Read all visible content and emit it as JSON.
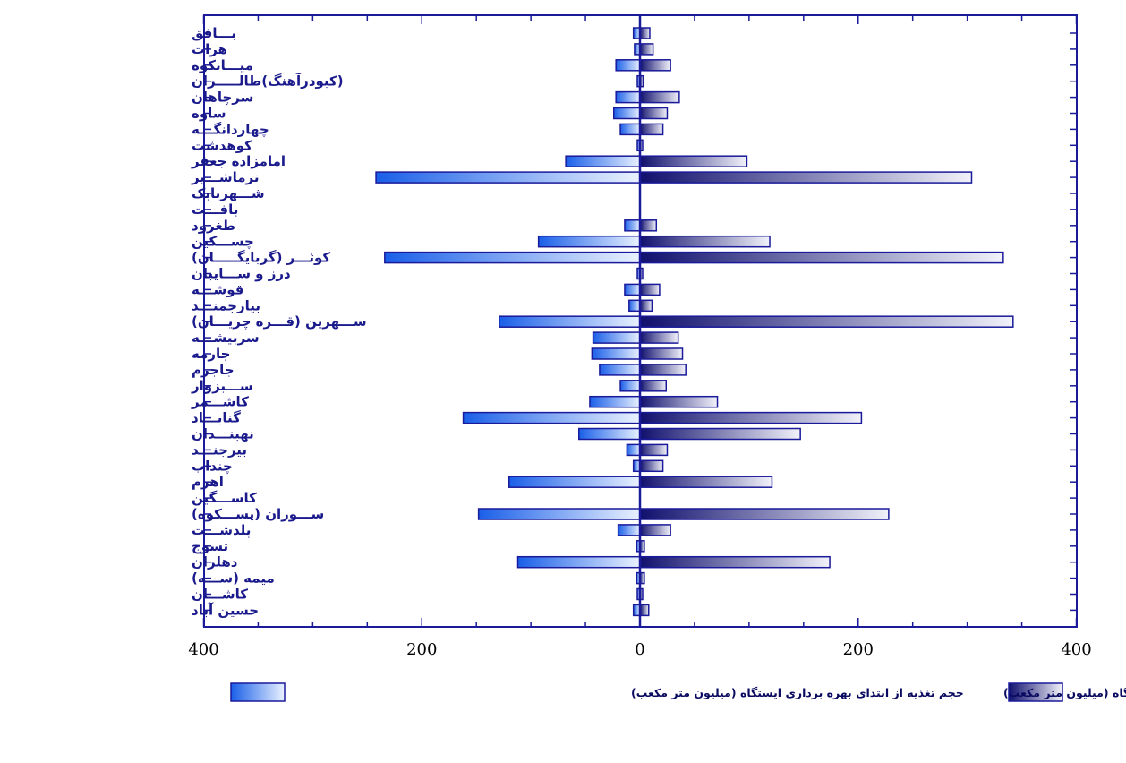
{
  "chart_data": {
    "type": "bar",
    "orientation": "horizontal-butterfly",
    "categories": [
      "بـــافق",
      "هرات",
      "میـــانکوه",
      "(کبودرآهنگ)طالـــــران",
      "سرچاهان",
      "ساوه",
      "چهاردانگـــه",
      "کوهدشت",
      "امامزاده جعفر",
      "نرماشـــیر",
      "شـــهربابک",
      "بافـــت",
      "طغرود",
      "چســـکین",
      "کوثـــر (گربایگـــــان)",
      "درز و ســـایبان",
      "قوشـــه",
      "بیارجمنـــد",
      "ســـهرین (قـــره چریـــان)",
      "سربیشـــه",
      "جارمه",
      "جاجرم",
      "ســـبزوار",
      "کاشـــمر",
      "گنابـــاد",
      "نهبنـــدان",
      "بیرجنـــد",
      "چنداب",
      "اهرم",
      "کاســـگین",
      "ســـوران (پســـکوه)",
      "پلدشـــت",
      "تسوج",
      "دهلران",
      "میمه (ســـه)",
      "کاشـــان",
      "حسین آباد"
    ],
    "series": [
      {
        "name": "حجم تغذیه از ابتدای بهره برداری ایستگاه (میلیون متر مکعب)",
        "side": "left",
        "values": [
          6,
          5,
          22,
          1,
          22,
          24,
          18,
          2,
          68,
          242,
          0,
          0,
          14,
          93,
          234,
          1,
          14,
          10,
          129,
          43,
          44,
          37,
          18,
          46,
          162,
          56,
          12,
          6,
          120,
          0,
          148,
          20,
          3,
          112,
          3,
          1,
          6
        ]
      },
      {
        "name": "حجم سیل گیری از ابتدای بهره برداری ایستگاه (میلیون متر مکعب)",
        "side": "right",
        "values": [
          9,
          12,
          28,
          3,
          36,
          25,
          21,
          2,
          98,
          304,
          0,
          0,
          15,
          119,
          333,
          1,
          18,
          11,
          342,
          35,
          39,
          42,
          24,
          71,
          203,
          147,
          25,
          21,
          121,
          0,
          228,
          28,
          4,
          174,
          4,
          1,
          8
        ]
      }
    ],
    "xlim": [
      -400,
      400
    ],
    "xticks": [
      "400",
      "200",
      "0",
      "200",
      "400"
    ],
    "grid": false,
    "legend_position": "bottom",
    "colors": {
      "left_dark": "#1a5fe8",
      "left_light": "#eaf2ff",
      "right_dark": "#10106e",
      "right_light": "#f2f2fa",
      "frame": "#1a1a9a",
      "axis": "#1a1a9a"
    }
  }
}
